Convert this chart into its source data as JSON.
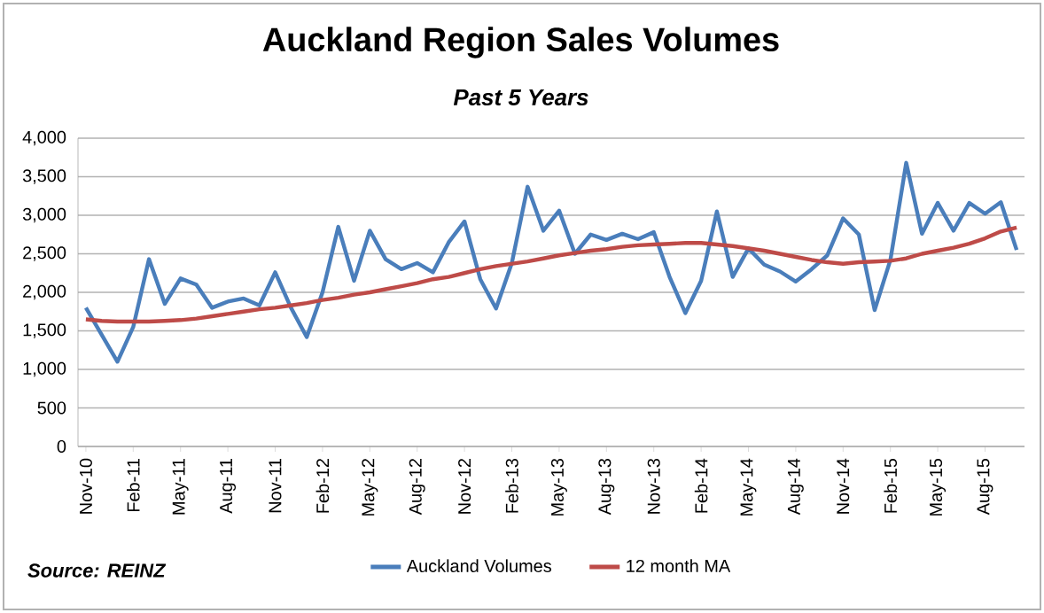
{
  "chart_data": {
    "type": "line",
    "title": "Auckland Region Sales Volumes",
    "subtitle": "Past 5 Years",
    "categories": [
      "Nov-10",
      null,
      null,
      "Feb-11",
      null,
      null,
      "May-11",
      null,
      null,
      "Aug-11",
      null,
      null,
      "Nov-11",
      null,
      null,
      "Feb-12",
      null,
      null,
      "May-12",
      null,
      null,
      "Aug-12",
      null,
      null,
      "Nov-12",
      null,
      null,
      "Feb-13",
      null,
      null,
      "May-13",
      null,
      null,
      "Aug-13",
      null,
      null,
      "Nov-13",
      null,
      null,
      "Feb-14",
      null,
      null,
      "May-14",
      null,
      null,
      "Aug-14",
      null,
      null,
      "Nov-14",
      null,
      null,
      "Feb-15",
      null,
      null,
      "May-15",
      null,
      null,
      "Aug-15",
      null,
      null
    ],
    "series": [
      {
        "name": "Auckland Volumes",
        "color": "#4a7ebb",
        "values": [
          1800,
          1450,
          1100,
          1550,
          2430,
          1850,
          2180,
          2100,
          1800,
          1880,
          1920,
          1830,
          2260,
          1800,
          1420,
          2000,
          2850,
          2150,
          2800,
          2430,
          2300,
          2380,
          2260,
          2650,
          2920,
          2170,
          1790,
          2380,
          3370,
          2800,
          3060,
          2500,
          2750,
          2680,
          2760,
          2690,
          2780,
          2200,
          1730,
          2150,
          3050,
          2200,
          2570,
          2360,
          2270,
          2140,
          2300,
          2480,
          2960,
          2750,
          1770,
          2420,
          3680,
          2760,
          3160,
          2800,
          3160,
          3020,
          3170,
          2550
        ]
      },
      {
        "name": "12 month MA",
        "color": "#be4b48",
        "values": [
          1650,
          1630,
          1620,
          1620,
          1620,
          1630,
          1640,
          1660,
          1690,
          1720,
          1750,
          1780,
          1800,
          1830,
          1860,
          1900,
          1930,
          1970,
          2000,
          2040,
          2080,
          2120,
          2170,
          2200,
          2250,
          2300,
          2340,
          2370,
          2400,
          2440,
          2480,
          2510,
          2540,
          2560,
          2590,
          2610,
          2620,
          2630,
          2640,
          2640,
          2620,
          2600,
          2570,
          2540,
          2500,
          2460,
          2420,
          2390,
          2370,
          2390,
          2400,
          2410,
          2440,
          2500,
          2540,
          2580,
          2630,
          2700,
          2790,
          2840
        ]
      }
    ],
    "ylim": [
      0,
      4000
    ],
    "yticks": [
      0,
      500,
      {
        "value": 1000,
        "label": "1,000"
      },
      {
        "value": 1500,
        "label": "1,500"
      },
      {
        "value": 2000,
        "label": "2,000"
      },
      {
        "value": 2500,
        "label": "2,500"
      },
      {
        "value": 3000,
        "label": "3,000"
      },
      {
        "value": 3500,
        "label": "3,500"
      },
      {
        "value": 4000,
        "label": "4,000"
      }
    ],
    "grid": "y",
    "legend": "bottom",
    "line_style": "solid",
    "annotations": [
      "Source: REINZ"
    ]
  }
}
